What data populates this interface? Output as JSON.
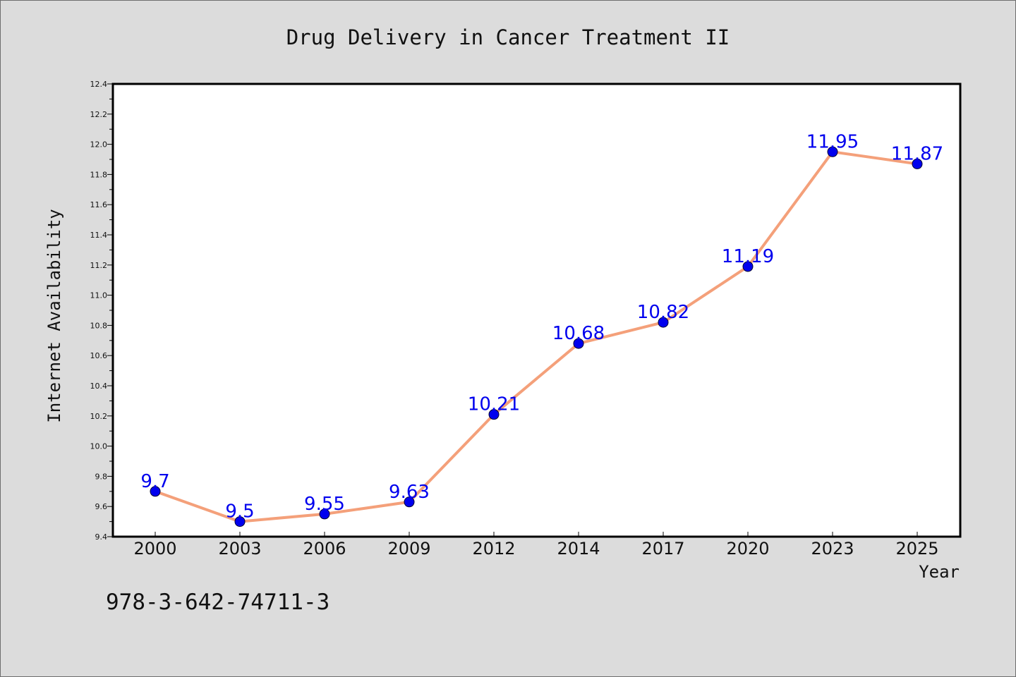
{
  "colors": {
    "background": "#dcdcdc",
    "plot_background": "#ffffff",
    "line": "#f4a07a",
    "marker": "#0000ee",
    "data_label": "#0000ee",
    "text": "#111111"
  },
  "footer_text": "978-3-642-74711-3",
  "chart_data": {
    "type": "line",
    "title": "Drug Delivery in Cancer Treatment II",
    "xlabel": "Year",
    "ylabel": "Internet Availability",
    "categories": [
      "2000",
      "2003",
      "2006",
      "2009",
      "2012",
      "2014",
      "2017",
      "2020",
      "2023",
      "2025"
    ],
    "series": [
      {
        "values": [
          9.7,
          9.5,
          9.55,
          9.63,
          10.21,
          10.68,
          10.82,
          11.19,
          11.95,
          11.87
        ],
        "labels": [
          "9.7",
          "9.5",
          "9.55",
          "9.63",
          "10.21",
          "10.68",
          "10.82",
          "11.19",
          "11.95",
          "11.87"
        ]
      }
    ],
    "ylim": [
      9.4,
      12.4
    ],
    "yticks": [
      "9.4",
      "9.6",
      "9.8",
      "10.0",
      "10.2",
      "10.4",
      "10.6",
      "10.8",
      "11.0",
      "11.2",
      "11.4",
      "11.6",
      "11.8",
      "12.0",
      "12.2",
      "12.4"
    ],
    "grid": false,
    "legend": false
  }
}
